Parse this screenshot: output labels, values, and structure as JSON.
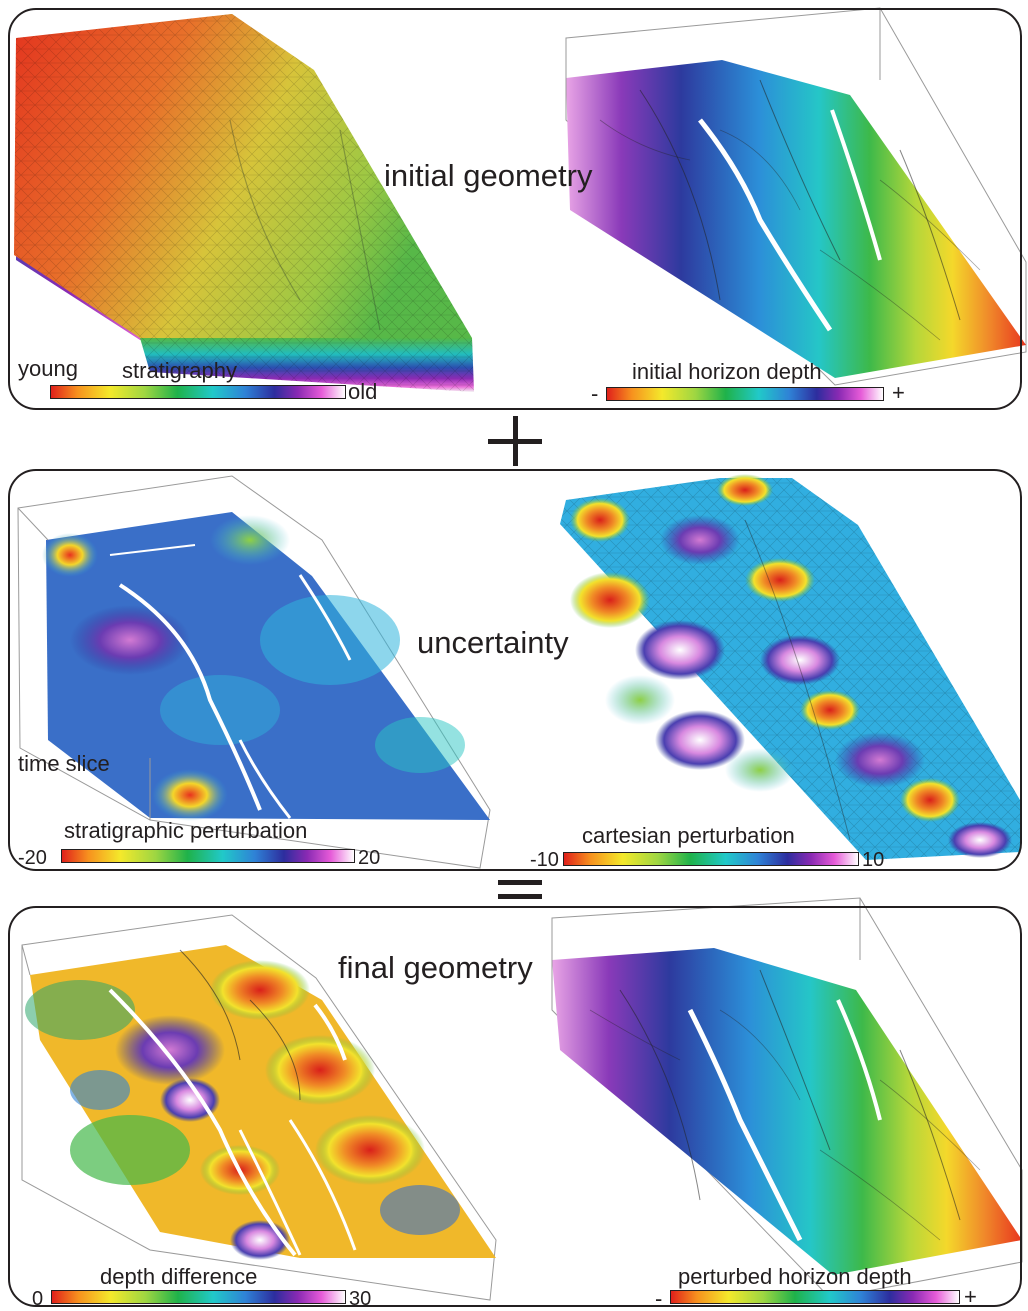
{
  "panels": {
    "initial": {
      "title": "initial geometry",
      "left_legend": {
        "title": "stratigraphy",
        "min_label": "young",
        "max_label": "old"
      },
      "right_legend": {
        "title": "initial horizon depth",
        "min_label": "-",
        "max_label": "+"
      }
    },
    "uncertainty": {
      "title": "uncertainty",
      "left_legend": {
        "title": "stratigraphic perturbation",
        "min_label": "-20",
        "max_label": "20"
      },
      "left_annotation": "time slice",
      "right_legend": {
        "title": "cartesian perturbation",
        "min_label": "-10",
        "max_label": "10"
      }
    },
    "final": {
      "title": "final geometry",
      "left_legend": {
        "title": "depth difference",
        "min_label": "0",
        "max_label": "30"
      },
      "right_legend": {
        "title": "perturbed horizon depth",
        "min_label": "-",
        "max_label": "+"
      }
    }
  },
  "operators": {
    "plus": "+",
    "equals": "="
  },
  "colormap": [
    "#e0201b",
    "#f7911e",
    "#f4e92b",
    "#9ed642",
    "#1fb24a",
    "#21c9c9",
    "#2f82d6",
    "#2d2d9e",
    "#8a2ab3",
    "#e65bd8",
    "#ffffff"
  ]
}
